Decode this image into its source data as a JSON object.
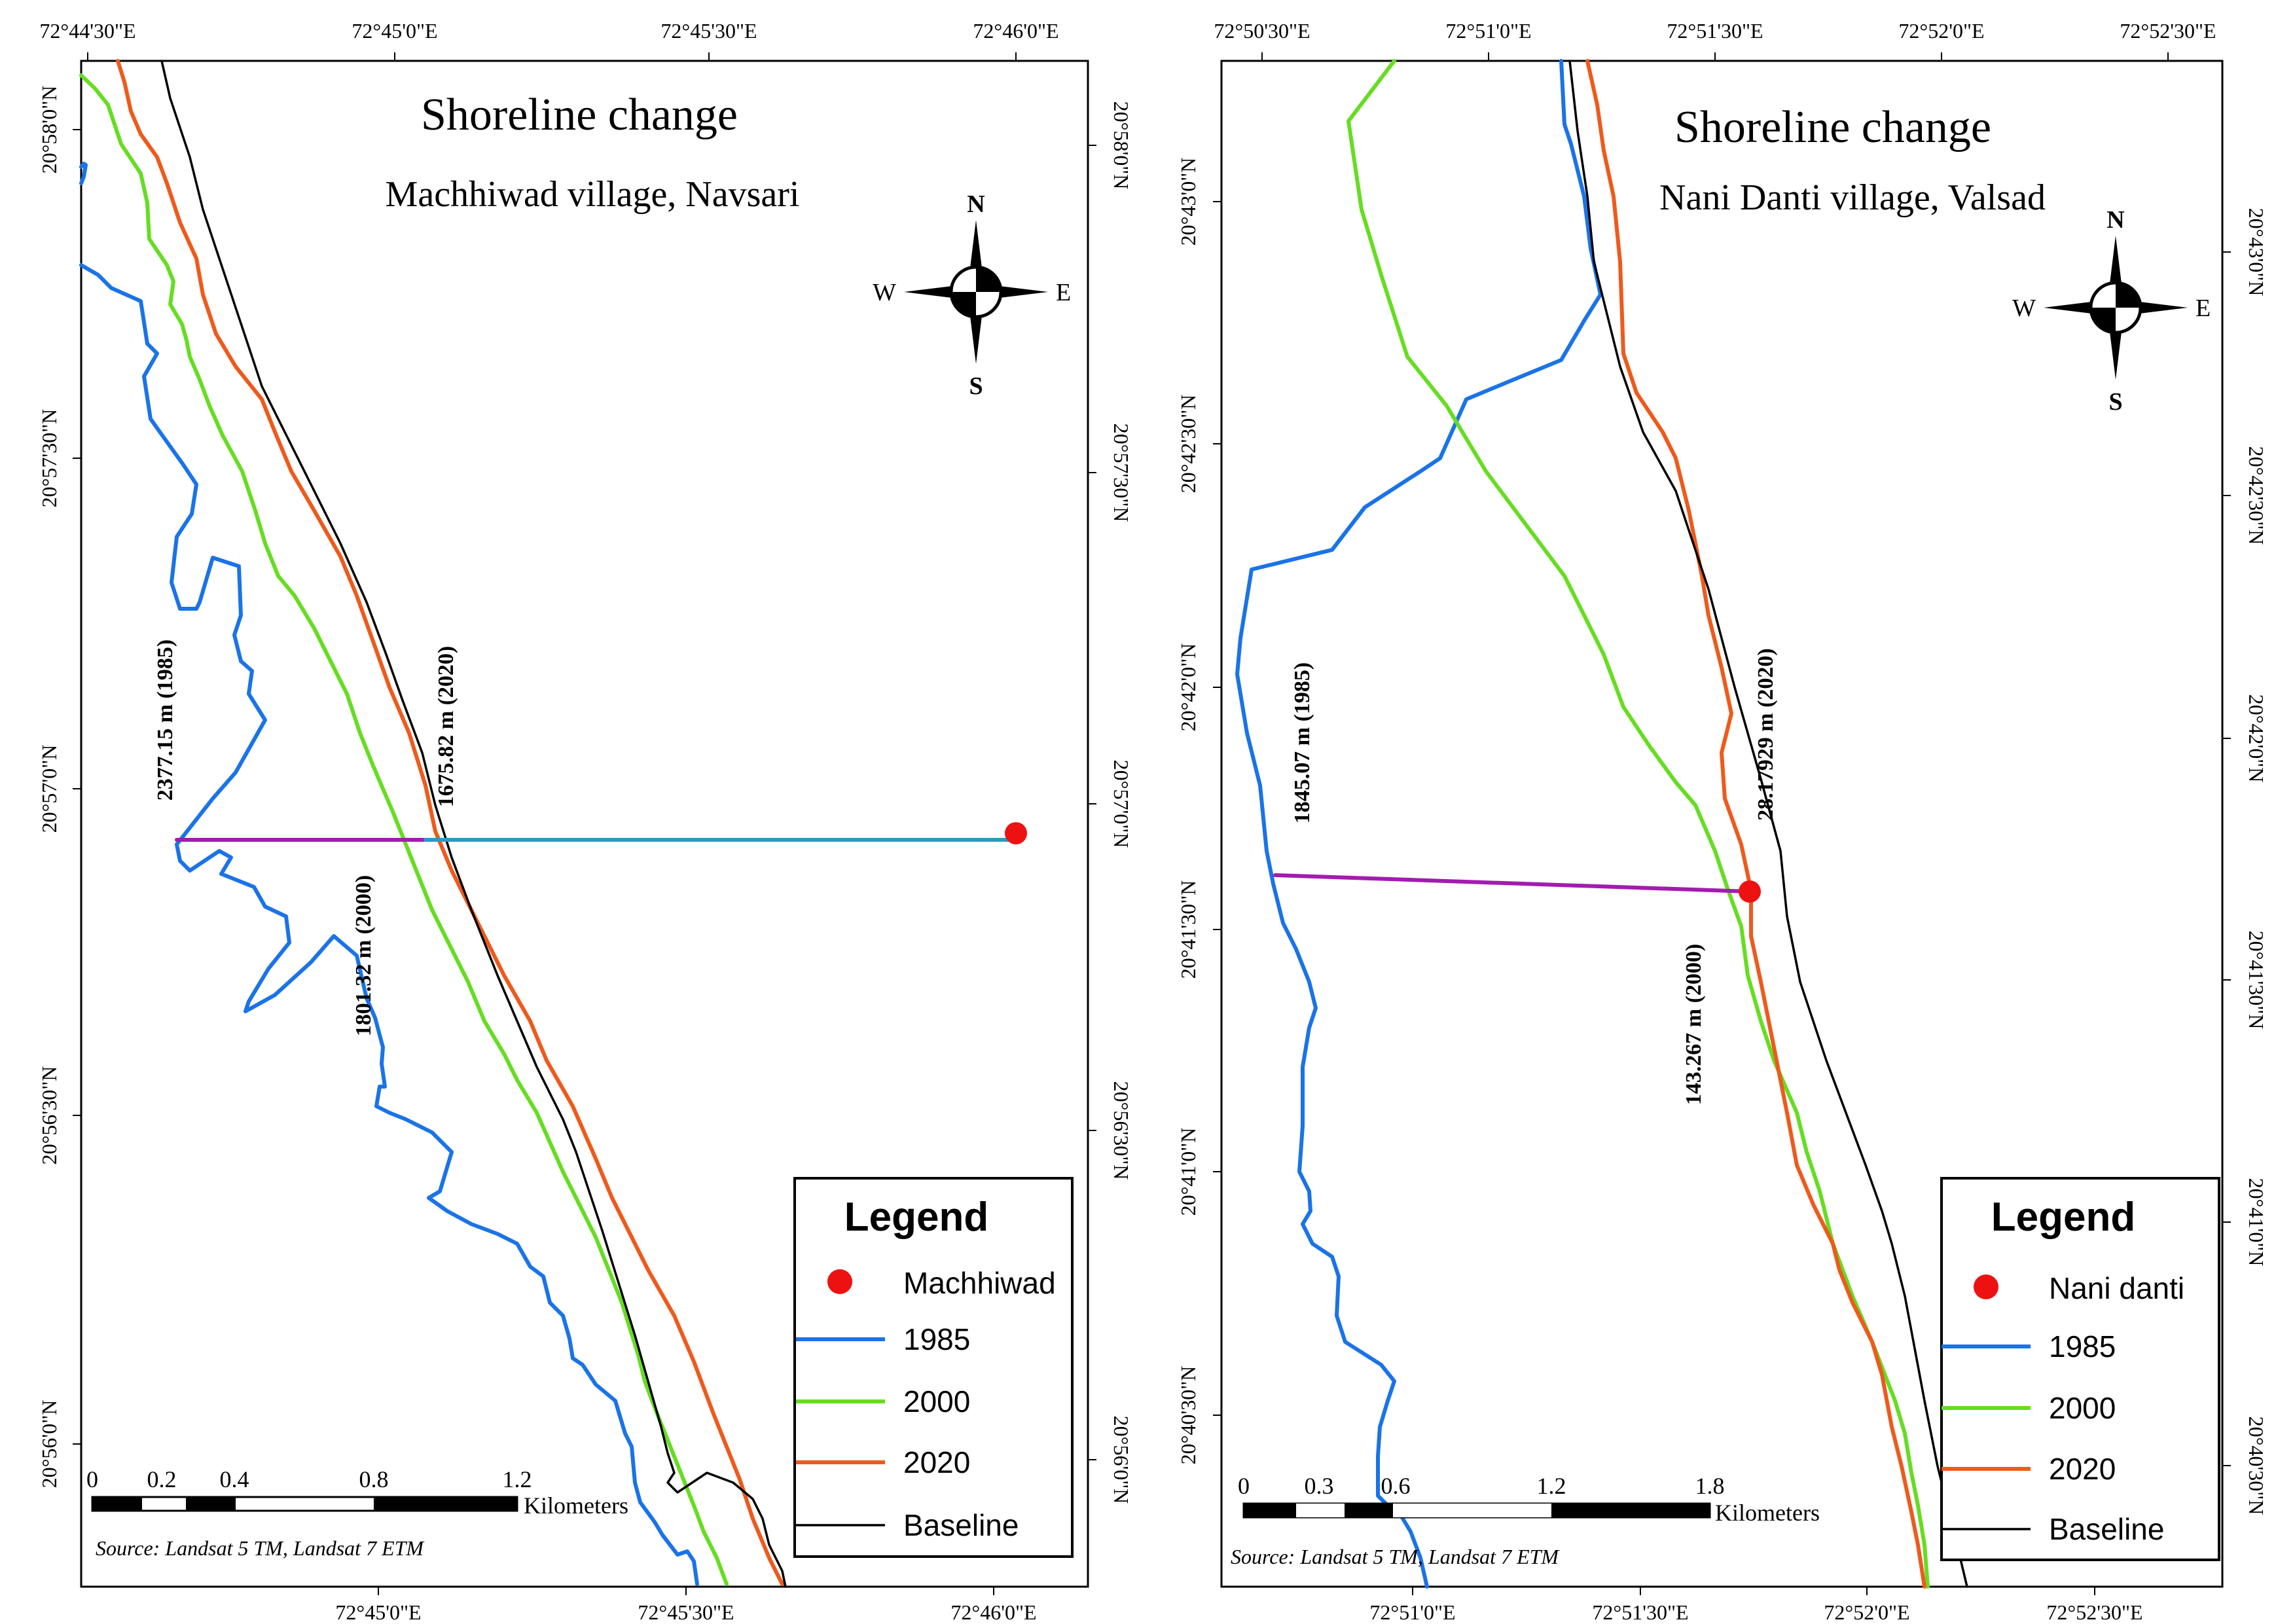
{
  "colors": {
    "y1985": "#1a73e8",
    "y2000": "#66dd22",
    "y2020": "#ee5a1c",
    "baseline": "#000000",
    "point": "#ee1111",
    "transect_purple": "#a21caf",
    "transect_teal": "#2a9cc2"
  },
  "left": {
    "title": "Shoreline change",
    "subtitle": "Machhiwad village, Navsari",
    "top_ticks": [
      "72°44'30\"E",
      "72°45'0\"E",
      "72°45'30\"E",
      "72°46'0\"E"
    ],
    "bottom_ticks": [
      "72°45'0\"E",
      "72°45'30\"E",
      "72°46'0\"E"
    ],
    "left_ticks": [
      "20°58'0\"N",
      "20°57'30\"N",
      "20°57'0\"N",
      "20°56'30\"N",
      "20°56'0\"N"
    ],
    "right_ticks": [
      "20°58'0\"N",
      "20°57'30\"N",
      "20°57'0\"N",
      "20°56'30\"N",
      "20°56'0\"N"
    ],
    "labels": {
      "d1985": "2377.15 m (1985)",
      "d2020": "1675.82 m (2020)",
      "d2000": "1801.32 m (2000)"
    },
    "legend": {
      "title": "Legend",
      "point": "Machhiwad",
      "l1985": "1985",
      "l2000": "2000",
      "l2020": "2020",
      "baseline": "Baseline"
    },
    "scale": {
      "ticks": [
        "0",
        "0.2",
        "0.4",
        "0.8",
        "1.2"
      ],
      "unit": "Kilometers"
    },
    "source": "Source: Landsat 5 TM, Landsat 7 ETM",
    "compass": {
      "n": "N",
      "s": "S",
      "e": "E",
      "w": "W"
    }
  },
  "right": {
    "title": "Shoreline change",
    "subtitle": "Nani Danti village, Valsad",
    "top_ticks": [
      "72°50'30\"E",
      "72°51'0\"E",
      "72°51'30\"E",
      "72°52'0\"E",
      "72°52'30\"E"
    ],
    "bottom_ticks": [
      "72°51'0\"E",
      "72°51'30\"E",
      "72°52'0\"E",
      "72°52'30\"E"
    ],
    "left_ticks": [
      "20°43'0\"N",
      "20°42'30\"N",
      "20°42'0\"N",
      "20°41'30\"N",
      "20°41'0\"N",
      "20°40'30\"N"
    ],
    "right_ticks": [
      "20°43'0\"N",
      "20°42'30\"N",
      "20°42'0\"N",
      "20°41'30\"N",
      "20°41'0\"N",
      "20°40'30\"N"
    ],
    "labels": {
      "d1985": "1845.07 m (1985)",
      "d2020": "28.17929 m (2020)",
      "d2000": "143.267 m (2000)"
    },
    "legend": {
      "title": "Legend",
      "point": "Nani danti",
      "l1985": "1985",
      "l2000": "2000",
      "l2020": "2020",
      "baseline": "Baseline"
    },
    "scale": {
      "ticks": [
        "0",
        "0.3",
        "0.6",
        "1.2",
        "1.8"
      ],
      "unit": "Kilometers"
    },
    "source": "Source: Landsat 5 TM, Landsat 7 ETM",
    "compass": {
      "n": "N",
      "s": "S",
      "e": "E",
      "w": "W"
    }
  }
}
